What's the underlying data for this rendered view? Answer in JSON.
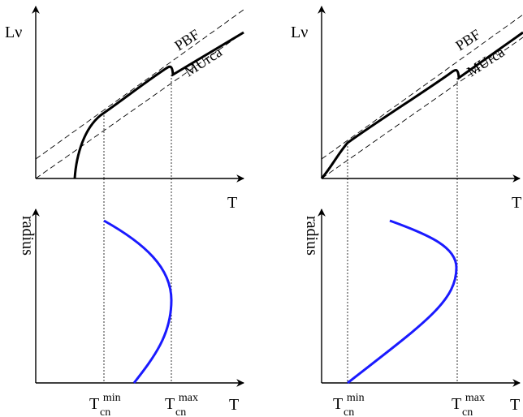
{
  "colors": {
    "axis": "#000000",
    "luminosity_curve": "#000000",
    "radius_curve": "#1a1aff",
    "guide_line": "#000000"
  },
  "left_panel": {
    "top": {
      "y_axis_label": "Lν",
      "x_axis_label": "T",
      "line_labels": {
        "upper": "PBF",
        "lower": "MUrca"
      }
    },
    "bottom": {
      "y_axis_label": "radius",
      "x_axis_label": "T",
      "tick_min": {
        "base": "T",
        "sub": "cn",
        "sup": "min"
      },
      "tick_max": {
        "base": "T",
        "sub": "cn",
        "sup": "max"
      }
    }
  },
  "right_panel": {
    "top": {
      "y_axis_label": "Lν",
      "x_axis_label": "T",
      "line_labels": {
        "upper": "PBF",
        "lower": "MUrca"
      }
    },
    "bottom": {
      "y_axis_label": "radius",
      "x_axis_label": "T",
      "tick_min": {
        "base": "T",
        "sub": "cn",
        "sup": "min"
      },
      "tick_max": {
        "base": "T",
        "sub": "cn",
        "sup": "max"
      }
    }
  }
}
